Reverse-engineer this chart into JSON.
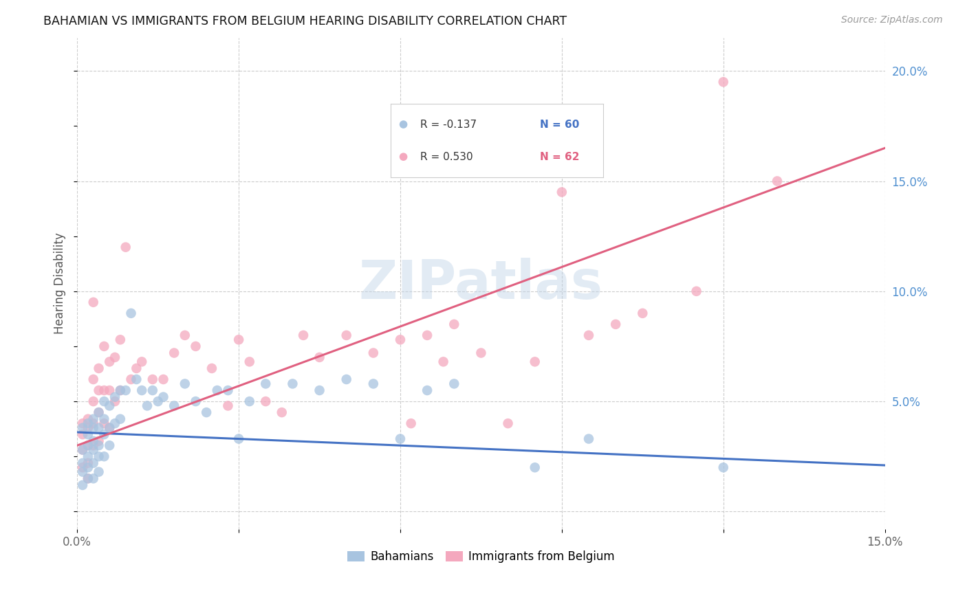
{
  "title": "BAHAMIAN VS IMMIGRANTS FROM BELGIUM HEARING DISABILITY CORRELATION CHART",
  "source": "Source: ZipAtlas.com",
  "ylabel": "Hearing Disability",
  "watermark": "ZIPatlas",
  "xlim": [
    0.0,
    0.15
  ],
  "ylim": [
    -0.008,
    0.215
  ],
  "xticks": [
    0.0,
    0.03,
    0.06,
    0.09,
    0.12,
    0.15
  ],
  "xtick_labels": [
    "0.0%",
    "",
    "",
    "",
    "",
    "15.0%"
  ],
  "yticks_right": [
    0.0,
    0.05,
    0.1,
    0.15,
    0.2
  ],
  "ytick_labels_right": [
    "",
    "5.0%",
    "10.0%",
    "15.0%",
    "20.0%"
  ],
  "series1_label": "Bahamians",
  "series2_label": "Immigrants from Belgium",
  "series1_R": -0.137,
  "series1_N": 60,
  "series2_R": 0.53,
  "series2_N": 62,
  "series1_color": "#a8c4e0",
  "series2_color": "#f4a8be",
  "series1_line_color": "#4472c4",
  "series2_line_color": "#e06080",
  "blue_line_x0": 0.0,
  "blue_line_y0": 0.036,
  "blue_line_x1": 0.15,
  "blue_line_y1": 0.021,
  "pink_line_x0": 0.0,
  "pink_line_y0": 0.03,
  "pink_line_x1": 0.15,
  "pink_line_y1": 0.165,
  "series1_x": [
    0.001,
    0.001,
    0.001,
    0.001,
    0.001,
    0.002,
    0.002,
    0.002,
    0.002,
    0.002,
    0.002,
    0.003,
    0.003,
    0.003,
    0.003,
    0.003,
    0.003,
    0.004,
    0.004,
    0.004,
    0.004,
    0.004,
    0.005,
    0.005,
    0.005,
    0.005,
    0.006,
    0.006,
    0.006,
    0.007,
    0.007,
    0.008,
    0.008,
    0.009,
    0.01,
    0.011,
    0.012,
    0.013,
    0.014,
    0.015,
    0.016,
    0.018,
    0.02,
    0.022,
    0.024,
    0.026,
    0.028,
    0.03,
    0.032,
    0.035,
    0.04,
    0.045,
    0.05,
    0.055,
    0.06,
    0.065,
    0.07,
    0.085,
    0.095,
    0.12
  ],
  "series1_y": [
    0.038,
    0.028,
    0.022,
    0.018,
    0.012,
    0.04,
    0.035,
    0.03,
    0.025,
    0.02,
    0.015,
    0.042,
    0.038,
    0.032,
    0.028,
    0.022,
    0.015,
    0.045,
    0.038,
    0.03,
    0.025,
    0.018,
    0.05,
    0.042,
    0.035,
    0.025,
    0.048,
    0.038,
    0.03,
    0.052,
    0.04,
    0.055,
    0.042,
    0.055,
    0.09,
    0.06,
    0.055,
    0.048,
    0.055,
    0.05,
    0.052,
    0.048,
    0.058,
    0.05,
    0.045,
    0.055,
    0.055,
    0.033,
    0.05,
    0.058,
    0.058,
    0.055,
    0.06,
    0.058,
    0.033,
    0.055,
    0.058,
    0.02,
    0.033,
    0.02
  ],
  "series2_x": [
    0.001,
    0.001,
    0.001,
    0.001,
    0.002,
    0.002,
    0.002,
    0.002,
    0.002,
    0.003,
    0.003,
    0.003,
    0.003,
    0.003,
    0.004,
    0.004,
    0.004,
    0.004,
    0.005,
    0.005,
    0.005,
    0.006,
    0.006,
    0.006,
    0.007,
    0.007,
    0.008,
    0.008,
    0.009,
    0.01,
    0.011,
    0.012,
    0.014,
    0.016,
    0.018,
    0.02,
    0.022,
    0.025,
    0.028,
    0.03,
    0.032,
    0.035,
    0.038,
    0.042,
    0.045,
    0.05,
    0.055,
    0.06,
    0.062,
    0.065,
    0.068,
    0.07,
    0.075,
    0.08,
    0.085,
    0.09,
    0.095,
    0.1,
    0.105,
    0.115,
    0.12,
    0.13
  ],
  "series2_y": [
    0.04,
    0.035,
    0.028,
    0.02,
    0.042,
    0.038,
    0.03,
    0.022,
    0.015,
    0.095,
    0.06,
    0.05,
    0.04,
    0.03,
    0.065,
    0.055,
    0.045,
    0.032,
    0.075,
    0.055,
    0.04,
    0.068,
    0.055,
    0.038,
    0.07,
    0.05,
    0.078,
    0.055,
    0.12,
    0.06,
    0.065,
    0.068,
    0.06,
    0.06,
    0.072,
    0.08,
    0.075,
    0.065,
    0.048,
    0.078,
    0.068,
    0.05,
    0.045,
    0.08,
    0.07,
    0.08,
    0.072,
    0.078,
    0.04,
    0.08,
    0.068,
    0.085,
    0.072,
    0.04,
    0.068,
    0.145,
    0.08,
    0.085,
    0.09,
    0.1,
    0.195,
    0.15
  ]
}
